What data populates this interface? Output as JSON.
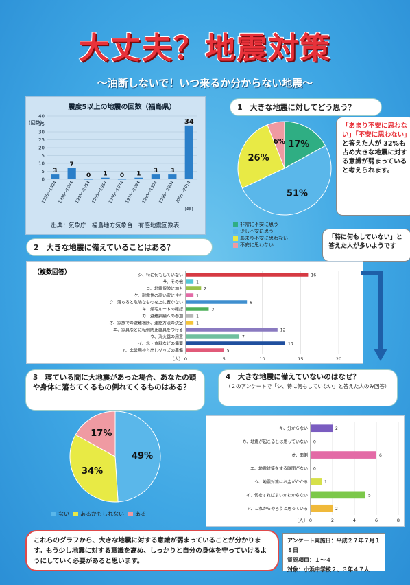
{
  "title": "大丈夫？地震対策",
  "subtitle": "〜油断しないで！いつ来るか分からない地震〜",
  "colors": {
    "accent": "#e8323a",
    "bg": "#3fa7e4",
    "bar_blue": "#2b7fc9",
    "pie_green": "#2fae83",
    "pie_blue": "#5ab7ea",
    "pie_yellow": "#e8ea45",
    "pie_pink": "#ef9aa2"
  },
  "eq_chart": {
    "title": "震度5以上の地震の回数（福島県）",
    "ylabel": "(回数)",
    "xunit": "〔年〕",
    "source": "出典：気象庁　福島地方気象台　有感地震回数表",
    "chart_data": {
      "type": "bar",
      "categories": [
        "1925〜1934",
        "1935〜1944",
        "1945〜1954",
        "1955〜1964",
        "1965〜1974",
        "1975〜1984",
        "1985〜1994",
        "1995〜2004",
        "2005〜2014"
      ],
      "values": [
        3,
        7,
        0,
        1,
        0,
        1,
        3,
        3,
        34
      ],
      "ylim": [
        0,
        40
      ],
      "yticks": [
        0,
        5,
        10,
        15,
        20,
        25,
        30,
        35,
        40
      ]
    }
  },
  "q1": {
    "header": "1　大きな地震に対してどう思う？",
    "note_parts": [
      "「あまり不安に思わない」「不安に思わない」",
      "と答えた人が 32%も占め大きな地震に対する意識が弱まっていると考えられます。"
    ],
    "chart_data": {
      "type": "pie",
      "labels": [
        "非常に不安に思う",
        "少し不安に思う",
        "あまり不安に思わない",
        "不安に思わない"
      ],
      "values": [
        17,
        51,
        26,
        6
      ],
      "value_labels": [
        "17%",
        "51%",
        "26%",
        "6%"
      ]
    }
  },
  "q2": {
    "header": "2　大きな地震に備えていることはある？",
    "note": "「特に何もしていない」と答えた人が多いようです",
    "tag": "（複数回答）",
    "unit": "〔人〕",
    "chart_data": {
      "type": "bar",
      "orientation": "horizontal",
      "categories": [
        "シ、特に何もしていない",
        "サ、その他",
        "コ、地震保険に加入",
        "ケ、耐震性の高い家に住む",
        "ク、落ちると危険なものを上に置かない",
        "キ、帰宅ルートの確認",
        "カ、避難訓練への参加",
        "オ、家族での避難場所、連絡方法の決定",
        "エ、家具などに転倒防止器具をつける",
        "ウ、消火器の用意",
        "イ、水・食料などの備蓄",
        "ア、非常用持ち出しグッズの準備"
      ],
      "values": [
        16,
        1,
        2,
        1,
        8,
        3,
        1,
        1,
        12,
        7,
        13,
        5
      ],
      "xlim": [
        0,
        20
      ],
      "xticks": [
        0,
        5,
        10,
        15,
        20
      ]
    }
  },
  "q3": {
    "header": "3　寝ている間に大地震があった場合、あなたの頭や身体に落ちてくるもの倒れてくるものはある？",
    "chart_data": {
      "type": "pie",
      "labels": [
        "ない",
        "あるかもしれない",
        "ある"
      ],
      "values": [
        49,
        34,
        17
      ],
      "value_labels": [
        "49%",
        "34%",
        "17%"
      ]
    }
  },
  "q4": {
    "header": "4　大きな地震に備えていないのはなぜ？",
    "sub": "（２のアンケートで「シ、特に何もしていない」と答えた人のみ回答）",
    "unit": "〔人〕",
    "chart_data": {
      "type": "bar",
      "orientation": "horizontal",
      "categories": [
        "キ、分からない",
        "カ、地震が起こるとは思っていない",
        "オ、面倒",
        "エ、地震対策をする時間がない",
        "ウ、地震対策はお金がかかる",
        "イ、何をすればよいかわからない",
        "ア、これからやろうと思っている"
      ],
      "values": [
        2,
        0,
        6,
        0,
        1,
        5,
        2
      ],
      "xlim": [
        0,
        8
      ],
      "xticks": [
        0,
        2,
        4,
        6,
        8
      ]
    }
  },
  "conclusion": "これらのグラフから、大きな地震に対する意識が弱まっていることが分かります。もう少し地震に対する意識を高め、しっかりと自分の身体を守っていけるようにしていく必要があると思います。",
  "survey": [
    "アンケート実施日：平成２７年７月１８日",
    "質問項目：１〜４",
    "対象：小浜中学校２、３年４７人"
  ]
}
